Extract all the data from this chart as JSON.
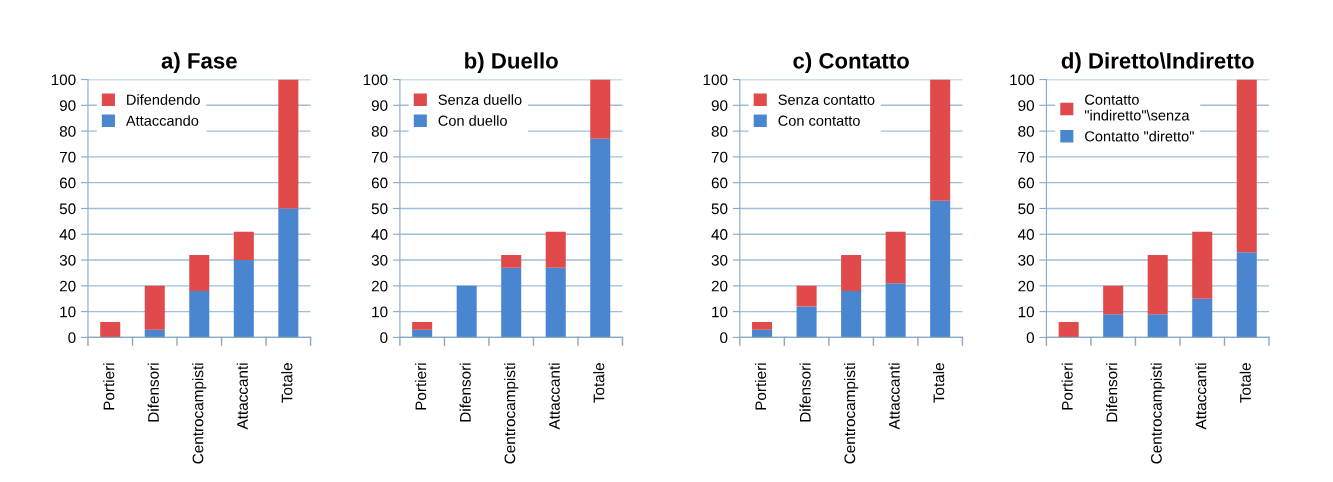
{
  "chart_data": [
    {
      "type": "bar",
      "title": "a) Fase",
      "stacked": true,
      "categories": [
        "Portieri",
        "Difensori",
        "Centrocampisti",
        "Attaccanti",
        "Totale"
      ],
      "ylim": [
        0,
        100
      ],
      "yticks": [
        0,
        10,
        20,
        30,
        40,
        50,
        60,
        70,
        80,
        90,
        100
      ],
      "grid": "y",
      "legend": "top left",
      "series": [
        {
          "name": "Attaccando",
          "color": "#4a86d0",
          "values": [
            0,
            3,
            18,
            30,
            50
          ]
        },
        {
          "name": "Difendendo",
          "color": "#e04a4a",
          "values": [
            6,
            17,
            14,
            11,
            50
          ]
        }
      ]
    },
    {
      "type": "bar",
      "title": "b) Duello",
      "stacked": true,
      "categories": [
        "Portieri",
        "Difensori",
        "Centrocampisti",
        "Attaccanti",
        "Totale"
      ],
      "ylim": [
        0,
        100
      ],
      "yticks": [
        0,
        10,
        20,
        30,
        40,
        50,
        60,
        70,
        80,
        90,
        100
      ],
      "grid": "y",
      "legend": "top left",
      "series": [
        {
          "name": "Con duello",
          "color": "#4a86d0",
          "values": [
            3,
            20,
            27,
            27,
            77
          ]
        },
        {
          "name": "Senza duello",
          "color": "#e04a4a",
          "values": [
            3,
            0,
            5,
            14,
            23
          ]
        }
      ]
    },
    {
      "type": "bar",
      "title": "c) Contatto",
      "stacked": true,
      "categories": [
        "Portieri",
        "Difensori",
        "Centrocampisti",
        "Attaccanti",
        "Totale"
      ],
      "ylim": [
        0,
        100
      ],
      "yticks": [
        0,
        10,
        20,
        30,
        40,
        50,
        60,
        70,
        80,
        90,
        100
      ],
      "grid": "y",
      "legend": "top left",
      "series": [
        {
          "name": "Con contatto",
          "color": "#4a86d0",
          "values": [
            3,
            12,
            18,
            21,
            53
          ]
        },
        {
          "name": "Senza contatto",
          "color": "#e04a4a",
          "values": [
            3,
            8,
            14,
            20,
            47
          ]
        }
      ]
    },
    {
      "type": "bar",
      "title": "d) Diretto\\Indiretto",
      "stacked": true,
      "categories": [
        "Portieri",
        "Difensori",
        "Centrocampisti",
        "Attaccanti",
        "Totale"
      ],
      "ylim": [
        0,
        100
      ],
      "yticks": [
        0,
        10,
        20,
        30,
        40,
        50,
        60,
        70,
        80,
        90,
        100
      ],
      "grid": "y",
      "legend": "top left",
      "series": [
        {
          "name": "Contatto \"diretto\"",
          "color": "#4a86d0",
          "values": [
            0,
            9,
            9,
            15,
            33
          ]
        },
        {
          "name": "Contatto\n\"indiretto\"\\senza",
          "color": "#e04a4a",
          "values": [
            6,
            11,
            23,
            26,
            67
          ]
        }
      ]
    }
  ]
}
